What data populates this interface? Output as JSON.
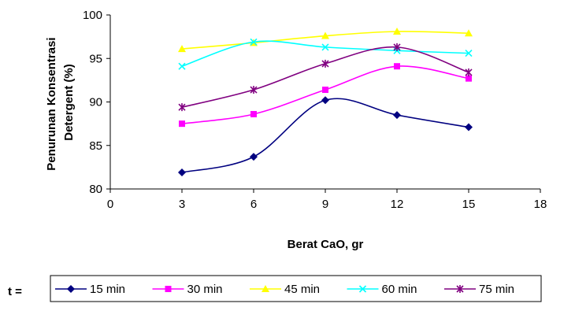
{
  "chart_data": {
    "type": "line",
    "title": "",
    "xlabel": "Berat CaO, gr",
    "ylabel": "Penurunan Konsentrasi Detergent (%)",
    "ylabel_lines": [
      "Penurunan Konsentrasi",
      "Detergent (%)"
    ],
    "xlim": [
      0,
      18
    ],
    "ylim": [
      80,
      100
    ],
    "x_ticks": [
      0,
      3,
      6,
      9,
      12,
      15,
      18
    ],
    "y_ticks": [
      80,
      85,
      90,
      95,
      100
    ],
    "grid": false,
    "smooth": true,
    "legend_prefix": "t =",
    "legend_position": "bottom",
    "x": [
      3,
      6,
      9,
      12,
      15
    ],
    "series": [
      {
        "name": "15 min",
        "color": "#000080",
        "marker": "diamond",
        "values": [
          81.9,
          83.7,
          90.2,
          88.5,
          87.1
        ]
      },
      {
        "name": "30 min",
        "color": "#FF00FF",
        "marker": "square",
        "values": [
          87.5,
          88.6,
          91.4,
          94.1,
          92.7
        ]
      },
      {
        "name": "45 min",
        "color": "#FFFF00",
        "marker": "triangle",
        "values": [
          96.1,
          96.8,
          97.6,
          98.1,
          97.9
        ]
      },
      {
        "name": "60 min",
        "color": "#00FFFF",
        "marker": "x",
        "values": [
          94.1,
          96.9,
          96.3,
          95.9,
          95.6
        ]
      },
      {
        "name": "75 min",
        "color": "#800080",
        "marker": "star",
        "values": [
          89.4,
          91.4,
          94.4,
          96.3,
          93.4
        ]
      }
    ]
  }
}
